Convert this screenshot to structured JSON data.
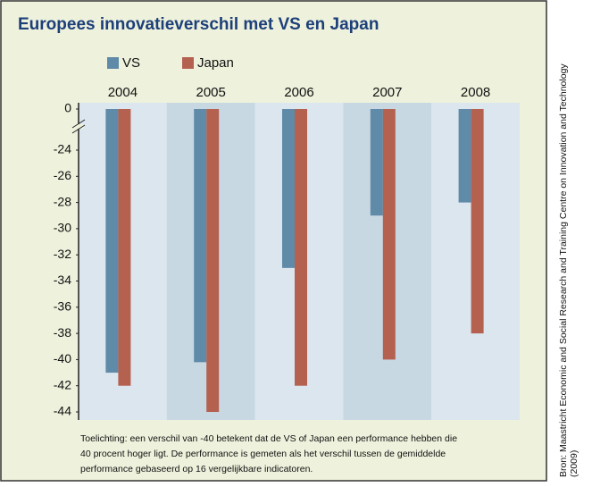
{
  "chart_data": {
    "type": "bar",
    "title": "Europees innovatieverschil met VS en Japan",
    "categories": [
      "2004",
      "2005",
      "2006",
      "2007",
      "2008"
    ],
    "series": [
      {
        "name": "VS",
        "color": "#5f8aa8",
        "values": [
          -41,
          -40.2,
          -33,
          -29,
          -28
        ]
      },
      {
        "name": "Japan",
        "color": "#b5614f",
        "values": [
          -42,
          -44,
          -42,
          -40,
          -38
        ]
      }
    ],
    "ylim": [
      -44,
      0
    ],
    "yticks": [
      0,
      -24,
      -26,
      -28,
      -30,
      -32,
      -34,
      -36,
      -38,
      -40,
      -42,
      -44
    ],
    "axis_break": true,
    "note": [
      "Toelichting: een verschil van -40 betekent dat de VS of Japan een performance hebben die",
      "40 procent hoger ligt. De performance is gemeten als het verschil tussen de gemiddelde",
      "performance gebaseerd op 16 vergelijkbare indicatoren."
    ],
    "source": [
      "Bron: Maastricht Economic and Social Research and Training Centre on Innovation and Technology",
      "(2009)"
    ]
  }
}
